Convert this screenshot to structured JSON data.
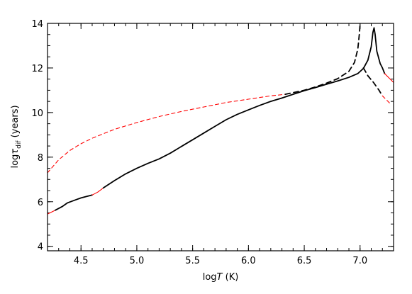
{
  "chart_data": {
    "type": "line",
    "xlabel": {
      "prefix": "log",
      "var": "T",
      "unit": " (K)"
    },
    "ylabel": {
      "prefix": "log",
      "var": "τ",
      "sub": "dif",
      "unit": " (years)"
    },
    "xlim": [
      4.2,
      7.3
    ],
    "ylim": [
      3.8,
      14.0
    ],
    "x_ticks": [
      4.5,
      5.0,
      5.5,
      6.0,
      6.5,
      7.0
    ],
    "x_tick_labels": [
      "4.5",
      "5.0",
      "5.5",
      "6.0",
      "6.5",
      "7.0"
    ],
    "y_ticks": [
      4,
      6,
      8,
      10,
      12,
      14
    ],
    "y_tick_labels": [
      "4",
      "6",
      "8",
      "10",
      "12",
      "14"
    ],
    "x_minor_step": 0.1,
    "y_minor_step": 0.5,
    "series": [
      {
        "style": "solid",
        "segments": [
          {
            "color": "#ff0000",
            "points": [
              [
                4.2,
                5.45
              ],
              [
                4.27,
                5.62
              ]
            ]
          },
          {
            "color": "#000000",
            "points": [
              [
                4.27,
                5.62
              ],
              [
                4.33,
                5.78
              ],
              [
                4.38,
                5.95
              ],
              [
                4.45,
                6.08
              ],
              [
                4.5,
                6.17
              ],
              [
                4.56,
                6.25
              ],
              [
                4.6,
                6.3
              ]
            ]
          },
          {
            "color": "#ff0000",
            "points": [
              [
                4.6,
                6.3
              ],
              [
                4.65,
                6.43
              ],
              [
                4.7,
                6.62
              ]
            ]
          },
          {
            "color": "#000000",
            "points": [
              [
                4.7,
                6.62
              ],
              [
                4.8,
                6.95
              ],
              [
                4.9,
                7.25
              ],
              [
                5.0,
                7.5
              ],
              [
                5.1,
                7.72
              ],
              [
                5.2,
                7.92
              ],
              [
                5.3,
                8.18
              ],
              [
                5.4,
                8.48
              ],
              [
                5.5,
                8.78
              ],
              [
                5.6,
                9.08
              ],
              [
                5.7,
                9.38
              ],
              [
                5.8,
                9.68
              ],
              [
                5.9,
                9.92
              ],
              [
                6.0,
                10.12
              ],
              [
                6.1,
                10.32
              ],
              [
                6.2,
                10.5
              ],
              [
                6.3,
                10.65
              ],
              [
                6.4,
                10.82
              ],
              [
                6.5,
                10.98
              ],
              [
                6.6,
                11.12
              ],
              [
                6.7,
                11.27
              ],
              [
                6.8,
                11.42
              ],
              [
                6.9,
                11.58
              ],
              [
                6.98,
                11.75
              ],
              [
                7.03,
                11.98
              ],
              [
                7.07,
                12.35
              ],
              [
                7.1,
                12.95
              ],
              [
                7.115,
                13.6
              ],
              [
                7.125,
                13.8
              ],
              [
                7.135,
                13.5
              ],
              [
                7.15,
                12.75
              ],
              [
                7.18,
                12.2
              ],
              [
                7.2,
                12.0
              ],
              [
                7.22,
                11.75
              ]
            ]
          },
          {
            "color": "#ff0000",
            "points": [
              [
                7.22,
                11.75
              ],
              [
                7.26,
                11.55
              ],
              [
                7.3,
                11.35
              ]
            ]
          }
        ]
      },
      {
        "style": "dashed",
        "segments": [
          {
            "color": "#ff0000",
            "points": [
              [
                4.2,
                7.3
              ],
              [
                4.3,
                7.88
              ],
              [
                4.4,
                8.3
              ],
              [
                4.5,
                8.6
              ],
              [
                4.6,
                8.85
              ],
              [
                4.7,
                9.05
              ],
              [
                4.8,
                9.25
              ],
              [
                5.0,
                9.55
              ],
              [
                5.2,
                9.82
              ],
              [
                5.4,
                10.05
              ],
              [
                5.6,
                10.25
              ],
              [
                5.8,
                10.45
              ],
              [
                6.0,
                10.6
              ],
              [
                6.2,
                10.75
              ],
              [
                6.33,
                10.82
              ]
            ]
          },
          {
            "color": "#000000",
            "points": [
              [
                6.33,
                10.82
              ],
              [
                6.5,
                11.0
              ],
              [
                6.6,
                11.15
              ],
              [
                6.7,
                11.32
              ],
              [
                6.8,
                11.52
              ],
              [
                6.9,
                11.85
              ],
              [
                6.95,
                12.25
              ],
              [
                6.98,
                12.85
              ],
              [
                6.995,
                13.6
              ],
              [
                7.0,
                14.0
              ]
            ]
          },
          {
            "color": "#000000",
            "points": [
              [
                7.03,
                12.0
              ],
              [
                7.07,
                11.65
              ],
              [
                7.12,
                11.35
              ],
              [
                7.17,
                11.0
              ],
              [
                7.2,
                10.75
              ]
            ]
          },
          {
            "color": "#ff0000",
            "points": [
              [
                7.2,
                10.75
              ],
              [
                7.25,
                10.5
              ],
              [
                7.28,
                10.35
              ]
            ]
          }
        ]
      }
    ]
  }
}
